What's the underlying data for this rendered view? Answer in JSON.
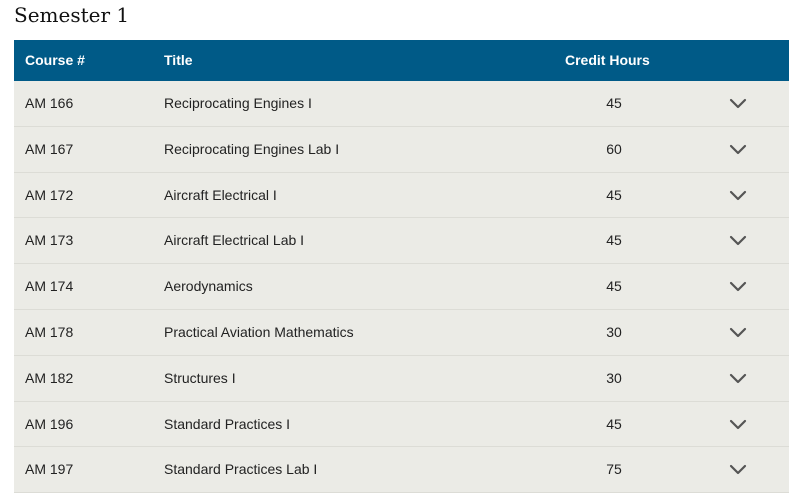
{
  "heading": "Semester 1",
  "table": {
    "columns": {
      "course": "Course #",
      "title": "Title",
      "credits": "Credit Hours"
    },
    "rows": [
      {
        "course": "AM 166",
        "title": "Reciprocating Engines I",
        "credits": "45"
      },
      {
        "course": "AM 167",
        "title": "Reciprocating Engines Lab I",
        "credits": "60"
      },
      {
        "course": "AM 172",
        "title": "Aircraft Electrical I",
        "credits": "45"
      },
      {
        "course": "AM 173",
        "title": "Aircraft Electrical Lab I",
        "credits": "45"
      },
      {
        "course": "AM 174",
        "title": "Aerodynamics",
        "credits": "45"
      },
      {
        "course": "AM 178",
        "title": "Practical Aviation Mathematics",
        "credits": "30"
      },
      {
        "course": "AM 182",
        "title": "Structures I",
        "credits": "30"
      },
      {
        "course": "AM 196",
        "title": "Standard Practices I",
        "credits": "45"
      },
      {
        "course": "AM 197",
        "title": "Standard Practices Lab I",
        "credits": "75"
      }
    ],
    "row_icon": "chevron-down-icon"
  },
  "colors": {
    "header_bg": "#005a87",
    "header_text": "#ffffff",
    "row_bg": "#ebebe6",
    "row_divider": "#dcdcd6",
    "chevron": "#555555"
  }
}
